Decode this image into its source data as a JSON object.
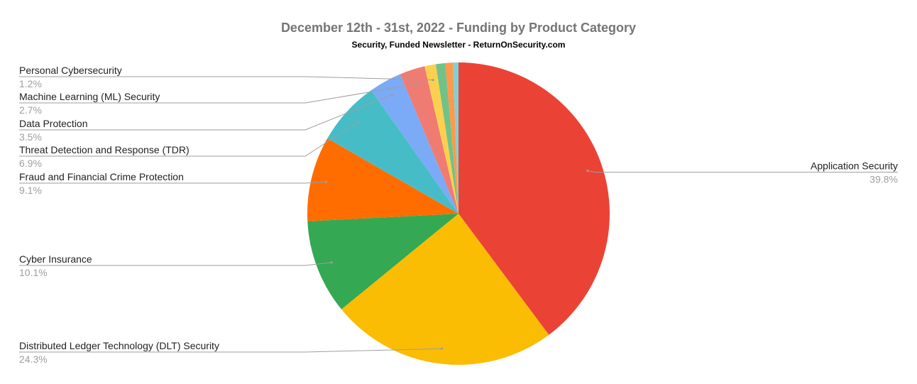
{
  "chart_data": {
    "type": "pie",
    "title": "December 12th - 31st, 2022 - Funding by Product Category",
    "subtitle": "Security, Funded Newsletter - ReturnOnSecurity.com",
    "slices": [
      {
        "label": "Application Security",
        "value": 39.8,
        "value_label": "39.8%",
        "color": "#ea4335",
        "show_label": true
      },
      {
        "label": "Distributed Ledger Technology (DLT) Security",
        "value": 24.3,
        "value_label": "24.3%",
        "color": "#fbbc04",
        "show_label": true
      },
      {
        "label": "Cyber Insurance",
        "value": 10.1,
        "value_label": "10.1%",
        "color": "#34a853",
        "show_label": true
      },
      {
        "label": "Fraud and Financial Crime Protection",
        "value": 9.1,
        "value_label": "9.1%",
        "color": "#ff6d01",
        "show_label": true
      },
      {
        "label": "Threat Detection and Response (TDR)",
        "value": 6.9,
        "value_label": "6.9%",
        "color": "#46bdc6",
        "show_label": true
      },
      {
        "label": "Data Protection",
        "value": 3.5,
        "value_label": "3.5%",
        "color": "#7baaf7",
        "show_label": true
      },
      {
        "label": "Machine Learning (ML) Security",
        "value": 2.7,
        "value_label": "2.7%",
        "color": "#f07b72",
        "show_label": true
      },
      {
        "label": "Personal Cybersecurity",
        "value": 1.2,
        "value_label": "1.2%",
        "color": "#fcd04f",
        "show_label": true
      },
      {
        "label": "",
        "value": 1.0,
        "value_label": "",
        "color": "#71c287",
        "show_label": false
      },
      {
        "label": "",
        "value": 0.8,
        "value_label": "",
        "color": "#ff994d",
        "show_label": false
      },
      {
        "label": "",
        "value": 0.6,
        "value_label": "",
        "color": "#7ed1d7",
        "show_label": false
      }
    ],
    "legend": "none",
    "start_angle": "top",
    "direction": "clockwise"
  }
}
